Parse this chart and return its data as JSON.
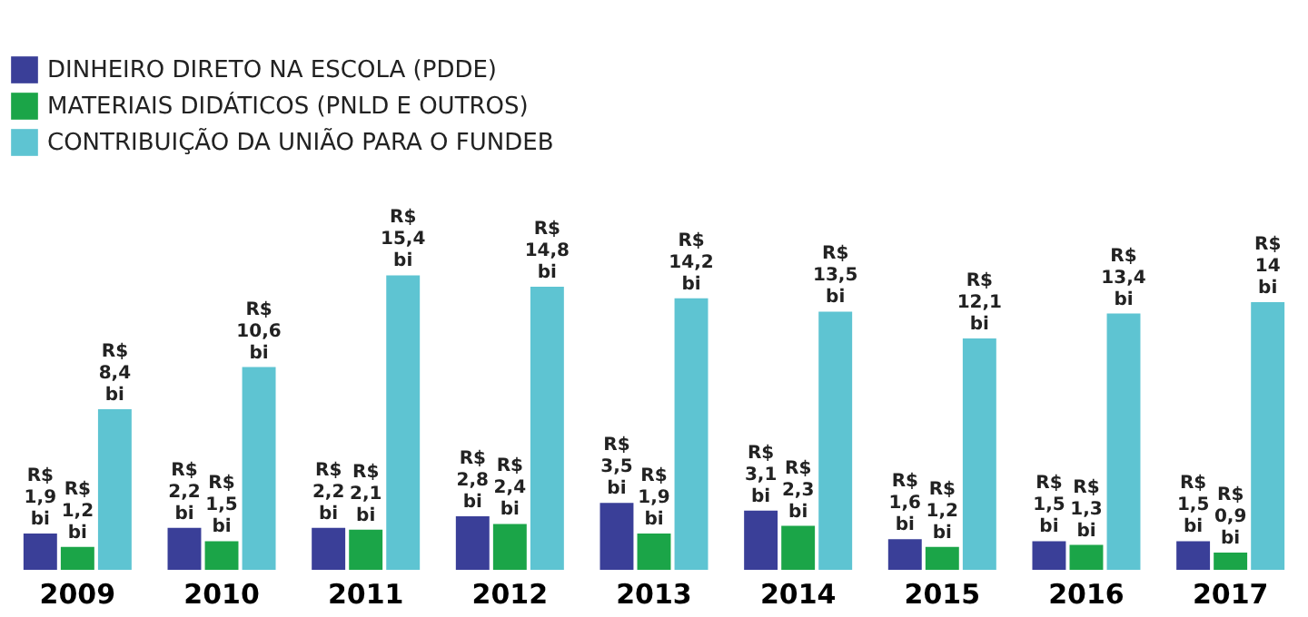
{
  "chart_data": {
    "type": "bar",
    "categories": [
      "2009",
      "2010",
      "2011",
      "2012",
      "2013",
      "2014",
      "2015",
      "2016",
      "2017"
    ],
    "series": [
      {
        "name": "DINHEIRO DIRETO NA ESCOLA (PDDE)",
        "color": "#3a3f98",
        "values": [
          1.9,
          2.2,
          2.2,
          2.8,
          3.5,
          3.1,
          1.6,
          1.5,
          1.5
        ],
        "value_labels": [
          "R$ 1,9 bi",
          "R$ 2,2 bi",
          "R$ 2,2 bi",
          "R$ 2,8 bi",
          "R$ 3,5 bi",
          "R$ 3,1 bi",
          "R$ 1,6 bi",
          "R$ 1,5 bi",
          "R$ 1,5 bi"
        ]
      },
      {
        "name": "MATERIAIS DIDÁTICOS (PNLD E OUTROS)",
        "color": "#1ba548",
        "values": [
          1.2,
          1.5,
          2.1,
          2.4,
          1.9,
          2.3,
          1.2,
          1.3,
          0.9
        ],
        "value_labels": [
          "R$ 1,2 bi",
          "R$ 1,5 bi",
          "R$ 2,1 bi",
          "R$ 2,4 bi",
          "R$ 1,9 bi",
          "R$ 2,3 bi",
          "R$ 1,2 bi",
          "R$ 1,3 bi",
          "R$ 0,9 bi"
        ]
      },
      {
        "name": "CONTRIBUIÇÃO DA UNIÃO PARA O  FUNDEB",
        "color": "#5ec4d2",
        "values": [
          8.4,
          10.6,
          15.4,
          14.8,
          14.2,
          13.5,
          12.1,
          13.4,
          14
        ],
        "value_labels": [
          "R$ 8,4 bi",
          "R$ 10,6 bi",
          "R$ 15,4 bi",
          "R$ 14,8 bi",
          "R$ 14,2 bi",
          "R$ 13,5 bi",
          "R$ 12,1 bi",
          "R$ 13,4 bi",
          "R$ 14 bi"
        ]
      }
    ],
    "legend": "top left",
    "grid": false
  }
}
